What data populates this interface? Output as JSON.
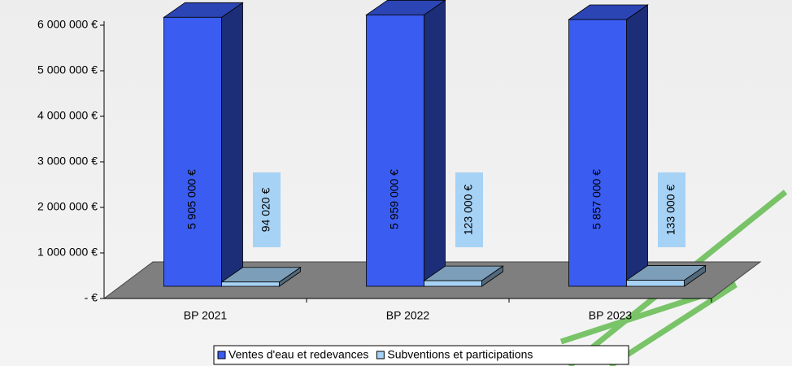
{
  "chart_data": {
    "type": "bar3d",
    "categories": [
      "BP 2021",
      "BP 2022",
      "BP 2023"
    ],
    "series": [
      {
        "name": "Ventes d'eau et redevances",
        "color": "#3a5cf0",
        "values": [
          5905000,
          5959000,
          5857000
        ],
        "value_labels": [
          "5 905 000 €",
          "5 959 000 €",
          "5 857 000 €"
        ]
      },
      {
        "name": "Subventions et participations",
        "color": "#a6d2f5",
        "values": [
          94020,
          123000,
          133000
        ],
        "value_labels": [
          "94 020 €",
          "123 000 €",
          "133 000 €"
        ]
      }
    ],
    "ylim": [
      0,
      6000000
    ],
    "yticks": [
      {
        "value": 0,
        "label": "- €"
      },
      {
        "value": 1000000,
        "label": "1 000 000 €"
      },
      {
        "value": 2000000,
        "label": "2 000 000 €"
      },
      {
        "value": 3000000,
        "label": "3 000 000 €"
      },
      {
        "value": 4000000,
        "label": "4 000 000 €"
      },
      {
        "value": 5000000,
        "label": "5 000 000 €"
      },
      {
        "value": 6000000,
        "label": "6 000 000 €"
      }
    ],
    "legend": "bottom"
  }
}
